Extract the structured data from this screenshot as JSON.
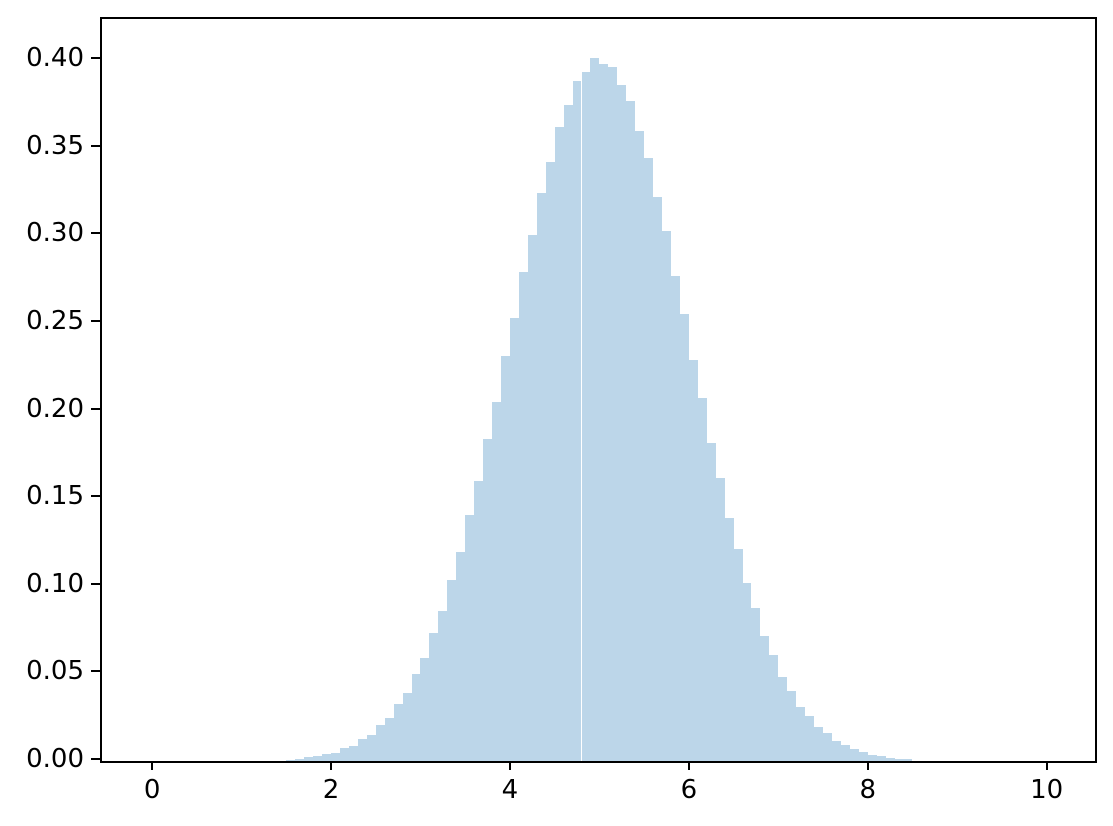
{
  "figure": {
    "background_color": "#ffffff",
    "spine_color": "#000000",
    "tick_color": "#000000",
    "tick_label_color": "#000000"
  },
  "chart_data": {
    "type": "bar",
    "subtype": "histogram",
    "title": "",
    "xlabel": "",
    "ylabel": "",
    "bar_color": "#bcd6e9",
    "grid": false,
    "legend": null,
    "xlim": [
      -0.56,
      10.54
    ],
    "ylim": [
      0,
      0.4234
    ],
    "bin_start": 1.5,
    "bin_width": 0.1,
    "xticks": [
      0,
      2,
      4,
      6,
      8,
      10
    ],
    "xtick_labels": [
      "0",
      "2",
      "4",
      "6",
      "8",
      "10"
    ],
    "yticks": [
      0.0,
      0.05,
      0.1,
      0.15,
      0.2,
      0.25,
      0.3,
      0.35,
      0.4
    ],
    "ytick_labels": [
      "0.00",
      "0.05",
      "0.10",
      "0.15",
      "0.20",
      "0.25",
      "0.30",
      "0.35",
      "0.40"
    ],
    "values": [
      0.0008,
      0.0013,
      0.0022,
      0.0026,
      0.0041,
      0.0048,
      0.0072,
      0.0088,
      0.0123,
      0.015,
      0.0204,
      0.0247,
      0.0323,
      0.0389,
      0.0495,
      0.0588,
      0.073,
      0.0855,
      0.1033,
      0.1192,
      0.1405,
      0.1596,
      0.1838,
      0.2049,
      0.2311,
      0.253,
      0.2792,
      0.3001,
      0.3242,
      0.3419,
      0.3618,
      0.3742,
      0.3879,
      0.3934,
      0.401,
      0.3975,
      0.3958,
      0.3856,
      0.3765,
      0.3595,
      0.3441,
      0.3219,
      0.3024,
      0.2769,
      0.2552,
      0.2288,
      0.2071,
      0.1816,
      0.1615,
      0.1386,
      0.1209,
      0.1015,
      0.0871,
      0.0713,
      0.0603,
      0.0481,
      0.0402,
      0.0311,
      0.0257,
      0.0193,
      0.0159,
      0.0115,
      0.0094,
      0.0066,
      0.0053,
      0.0036,
      0.0029,
      0.0019,
      0.0014,
      0.0009
    ]
  }
}
